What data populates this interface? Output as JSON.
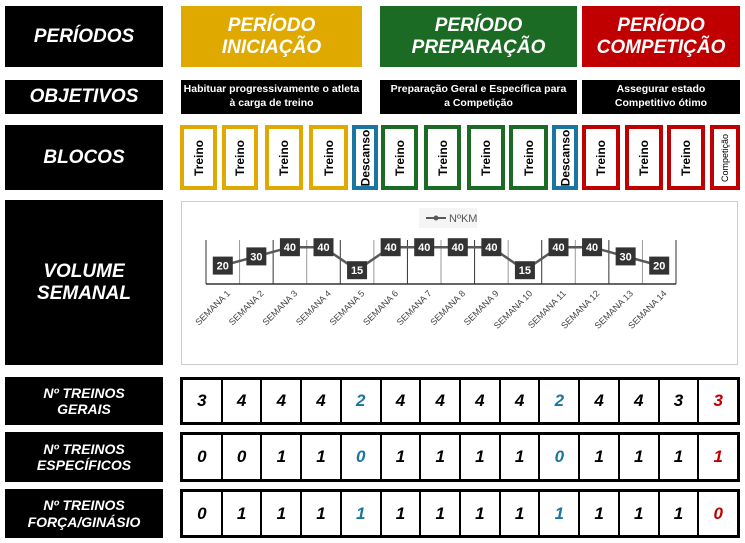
{
  "labels": {
    "periodos": "PERÍODOS",
    "objetivos": "OBJETIVOS",
    "blocos": "BLOCOS",
    "volume": "VOLUME SEMANAL",
    "gerais": "Nº TREINOS GERAIS",
    "especificos": "Nº TREINOS ESPECÍFICOS",
    "forca": "Nº TREINOS FORÇA/GINÁSIO"
  },
  "periods": [
    {
      "name": "PERÍODO INICIAÇÃO",
      "color": "#dfa900",
      "objective": "Habituar progressivamente o atleta à carga de treino"
    },
    {
      "name": "PERÍODO PREPARAÇÃO",
      "color": "#1b6b24",
      "objective": "Preparação Geral e Específica para a Competição"
    },
    {
      "name": "PERÍODO COMPETIÇÃO",
      "color": "#c00000",
      "objective": "Assegurar estado Competitivo ótimo"
    }
  ],
  "blocks": [
    {
      "label": "Treino",
      "color": "#dfa900"
    },
    {
      "label": "Treino",
      "color": "#dfa900"
    },
    {
      "label": "Treino",
      "color": "#dfa900"
    },
    {
      "label": "Treino",
      "color": "#dfa900"
    },
    {
      "label": "Descanso",
      "color": "#1a75a0"
    },
    {
      "label": "Treino",
      "color": "#1b6b24"
    },
    {
      "label": "Treino",
      "color": "#1b6b24"
    },
    {
      "label": "Treino",
      "color": "#1b6b24"
    },
    {
      "label": "Treino",
      "color": "#1b6b24"
    },
    {
      "label": "Descanso",
      "color": "#1a75a0"
    },
    {
      "label": "Treino",
      "color": "#c00000"
    },
    {
      "label": "Treino",
      "color": "#c00000"
    },
    {
      "label": "Treino",
      "color": "#c00000"
    },
    {
      "label": "Competição",
      "color": "#c00000"
    }
  ],
  "chart_data": {
    "type": "line",
    "legend": "NºKM",
    "legend_position": "top",
    "categories": [
      "SEMANA 1",
      "SEMANA 2",
      "SEMANA 3",
      "SEMANA 4",
      "SEMANA 5",
      "SEMANA 6",
      "SEMANA 7",
      "SEMANA 8",
      "SEMANA 9",
      "SEMANA 10",
      "SEMANA 11",
      "SEMANA 12",
      "SEMANA 13",
      "SEMANA 14"
    ],
    "series": [
      {
        "name": "NºKM",
        "values": [
          20,
          30,
          40,
          40,
          15,
          40,
          40,
          40,
          40,
          15,
          40,
          40,
          30,
          20
        ]
      }
    ],
    "ylim": [
      0,
      40
    ],
    "line_color": "#595959",
    "label_bg": "#333333"
  },
  "gerais": [
    3,
    4,
    4,
    4,
    2,
    4,
    4,
    4,
    4,
    2,
    4,
    4,
    3,
    3
  ],
  "especificos": [
    0,
    0,
    1,
    1,
    0,
    1,
    1,
    1,
    1,
    0,
    1,
    1,
    1,
    1
  ],
  "forca": [
    0,
    1,
    1,
    1,
    1,
    1,
    1,
    1,
    1,
    1,
    1,
    1,
    1,
    0
  ],
  "cell_colors": {
    "rest": "#1a75a0",
    "competition": "#c00000",
    "default": "#000000"
  }
}
